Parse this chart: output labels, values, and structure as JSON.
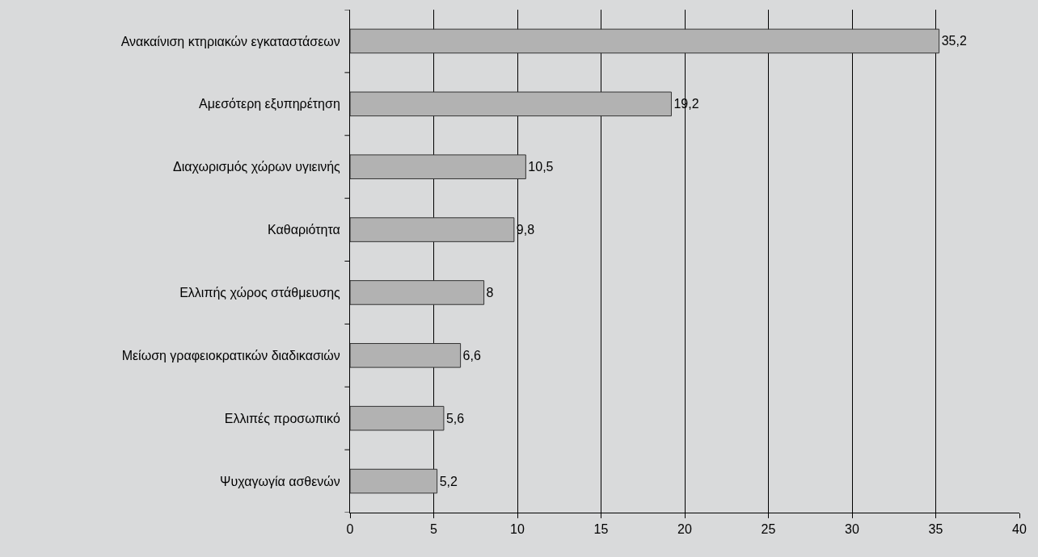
{
  "chart_data": {
    "type": "bar",
    "orientation": "horizontal",
    "categories": [
      "Ανακαίνιση κτηριακών εγκαταστάσεων",
      "Αμεσότερη εξυπηρέτηση",
      "Διαχωρισμός χώρων υγιεινής",
      "Καθαριότητα",
      "Ελλιπής χώρος στάθμευσης",
      "Μείωση γραφειοκρατικών διαδικασιών",
      "Ελλιπές προσωπικό",
      "Ψυχαγωγία ασθενών"
    ],
    "values": [
      35.2,
      19.2,
      10.5,
      9.8,
      8,
      6.6,
      5.6,
      5.2
    ],
    "value_labels": [
      "35,2",
      "19,2",
      "10,5",
      "9,8",
      "8",
      "6,6",
      "5,6",
      "5,2"
    ],
    "color": "#b2b2b2",
    "xlim": [
      0,
      40
    ],
    "xticks": [
      0,
      5,
      10,
      15,
      20,
      25,
      30,
      35,
      40
    ],
    "grid": "x"
  }
}
